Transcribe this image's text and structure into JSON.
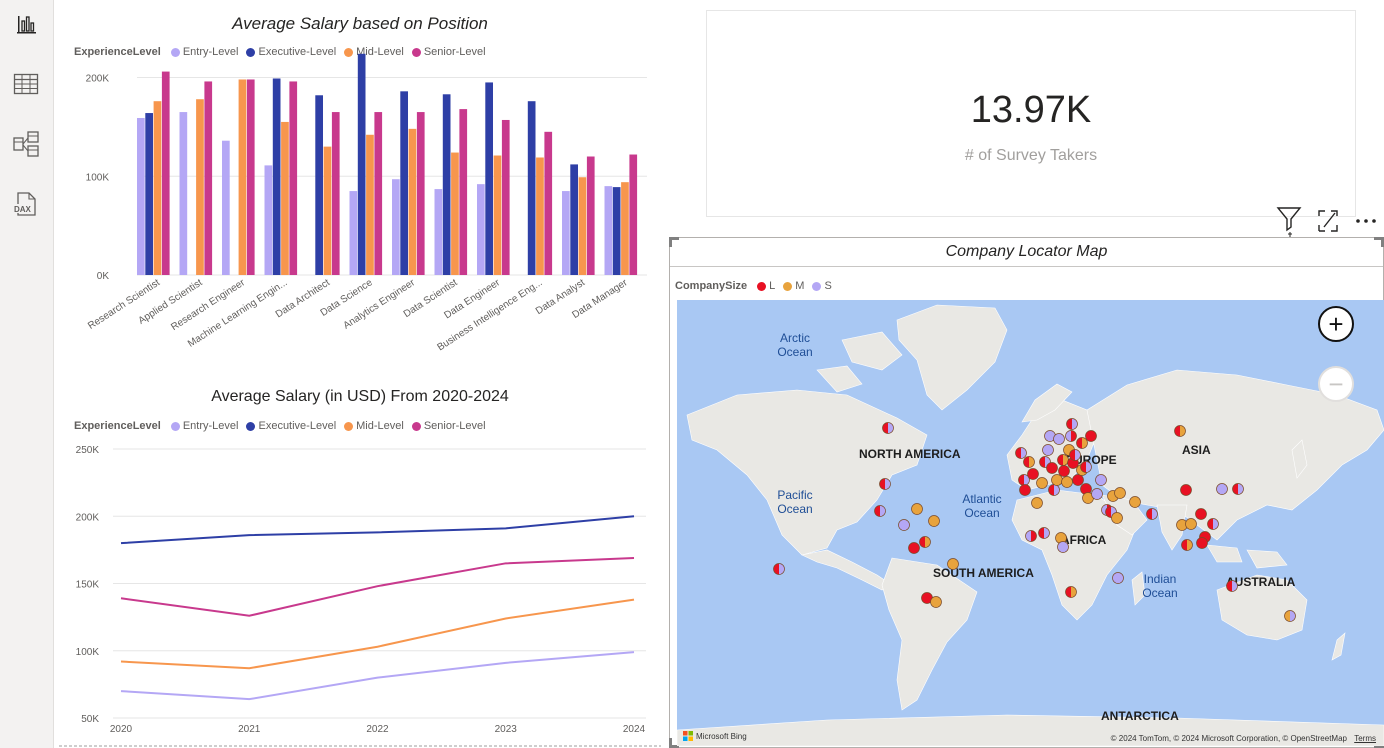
{
  "nav": {
    "items": [
      {
        "name": "report-view",
        "icon": "bar-chart-icon"
      },
      {
        "name": "table-view",
        "icon": "table-icon"
      },
      {
        "name": "model-view",
        "icon": "model-icon"
      },
      {
        "name": "dax-query-view",
        "icon": "dax-icon",
        "label": "DAX"
      }
    ]
  },
  "bar_visual": {
    "title": "Average Salary based on Position",
    "legend_title": "ExperienceLevel",
    "legend": [
      "Entry-Level",
      "Executive-Level",
      "Mid-Level",
      "Senior-Level"
    ],
    "colors": [
      "#b4a7f5",
      "#2e3fa6",
      "#f7964d",
      "#c8398d"
    ]
  },
  "line_visual": {
    "title": "Average Salary (in USD) From 2020-2024",
    "legend_title": "ExperienceLevel",
    "legend": [
      "Entry-Level",
      "Executive-Level",
      "Mid-Level",
      "Senior-Level"
    ]
  },
  "card": {
    "value": "13.97K",
    "label": "# of Survey Takers"
  },
  "map_visual": {
    "title": "Company Locator Map",
    "legend_title": "CompanySize",
    "legend": [
      {
        "label": "L",
        "color": "#e81123"
      },
      {
        "label": "M",
        "color": "#e8a33d"
      },
      {
        "label": "S",
        "color": "#b4a7f5"
      }
    ],
    "continents": [
      "NORTH AMERICA",
      "SOUTH AMERICA",
      "EUROPE",
      "AFRICA",
      "ASIA",
      "AUSTRALIA",
      "ANTARCTICA"
    ],
    "oceans": [
      "Arctic Ocean",
      "Pacific Ocean",
      "Atlantic Ocean",
      "Indian Ocean"
    ],
    "attribution": "© 2024 TomTom, © 2024 Microsoft Corporation, © OpenStreetMap",
    "terms": "Terms",
    "brand": "Microsoft Bing",
    "zoom_in": "+",
    "zoom_out": "−"
  },
  "chart_data": [
    {
      "type": "bar",
      "title": "Average Salary based on Position",
      "categories": [
        "Research Scientist",
        "Applied Scientist",
        "Research Engineer",
        "Machine Learning Engin...",
        "Data Architect",
        "Data Science",
        "Analytics Engineer",
        "Data Scientist",
        "Data Engineer",
        "Business Intelligence Eng...",
        "Data Analyst",
        "Data Manager"
      ],
      "series": [
        {
          "name": "Entry-Level",
          "values": [
            159000,
            165000,
            136000,
            111000,
            null,
            85000,
            97000,
            87000,
            92000,
            null,
            85000,
            90000
          ]
        },
        {
          "name": "Executive-Level",
          "values": [
            164000,
            null,
            null,
            199000,
            182000,
            224000,
            186000,
            183000,
            195000,
            176000,
            112000,
            89000
          ]
        },
        {
          "name": "Mid-Level",
          "values": [
            176000,
            178000,
            198000,
            155000,
            130000,
            142000,
            148000,
            124000,
            121000,
            119000,
            99000,
            94000
          ]
        },
        {
          "name": "Senior-Level",
          "values": [
            206000,
            196000,
            198000,
            196000,
            165000,
            165000,
            165000,
            168000,
            157000,
            145000,
            120000,
            122000
          ]
        }
      ],
      "yticks": [
        "0K",
        "100K",
        "200K"
      ],
      "ylim": [
        0,
        240000
      ],
      "legend": "top-left",
      "grid": true
    },
    {
      "type": "line",
      "title": "Average Salary (in USD) From 2020-2024",
      "x": [
        2020,
        2021,
        2022,
        2023,
        2024
      ],
      "series": [
        {
          "name": "Entry-Level",
          "values": [
            70000,
            64000,
            80000,
            91000,
            99000
          ]
        },
        {
          "name": "Executive-Level",
          "values": [
            180000,
            186000,
            188000,
            191000,
            200000
          ]
        },
        {
          "name": "Mid-Level",
          "values": [
            92000,
            87000,
            103000,
            124000,
            138000
          ]
        },
        {
          "name": "Senior-Level",
          "values": [
            139000,
            126000,
            148000,
            165000,
            169000
          ]
        }
      ],
      "yticks": [
        "50K",
        "100K",
        "150K",
        "200K",
        "250K"
      ],
      "ylim": [
        50000,
        250000
      ],
      "legend": "top-left",
      "grid": true
    }
  ]
}
